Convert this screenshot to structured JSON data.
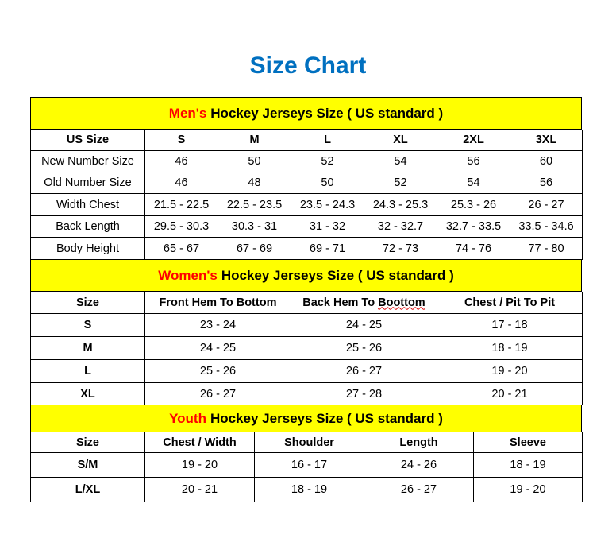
{
  "title": "Size Chart",
  "colors": {
    "title": "#0070C0",
    "header_bg": "#FFFF00",
    "highlight": "#FF0000"
  },
  "men": {
    "heading_highlight": "Men's",
    "heading_rest": "Hockey Jerseys Size ( US standard )",
    "columns": [
      "US Size",
      "S",
      "M",
      "L",
      "XL",
      "2XL",
      "3XL"
    ],
    "rows": [
      [
        "New Number Size",
        "46",
        "50",
        "52",
        "54",
        "56",
        "60"
      ],
      [
        "Old Number Size",
        "46",
        "48",
        "50",
        "52",
        "54",
        "56"
      ],
      [
        "Width Chest",
        "21.5 - 22.5",
        "22.5 - 23.5",
        "23.5 - 24.3",
        "24.3 - 25.3",
        "25.3 - 26",
        "26 - 27"
      ],
      [
        "Back Length",
        "29.5 - 30.3",
        "30.3 - 31",
        "31 - 32",
        "32 - 32.7",
        "32.7 - 33.5",
        "33.5 - 34.6"
      ],
      [
        "Body Height",
        "65 - 67",
        "67 - 69",
        "69 - 71",
        "72 - 73",
        "74 - 76",
        "77 - 80"
      ]
    ]
  },
  "women": {
    "heading_highlight": "Women's",
    "heading_rest": "Hockey Jerseys Size ( US standard )",
    "columns": [
      "Size",
      "Front Hem To Bottom",
      "Back Hem To Boottom",
      "Chest / Pit To Pit"
    ],
    "rows": [
      [
        "S",
        "23 - 24",
        "24 - 25",
        "17 - 18"
      ],
      [
        "M",
        "24 - 25",
        "25 - 26",
        "18 - 19"
      ],
      [
        "L",
        "25 - 26",
        "26 - 27",
        "19 - 20"
      ],
      [
        "XL",
        "26 - 27",
        "27 - 28",
        "20 - 21"
      ]
    ]
  },
  "youth": {
    "heading_highlight": "Youth",
    "heading_rest": "Hockey Jerseys Size ( US standard )",
    "columns": [
      "Size",
      "Chest / Width",
      "Shoulder",
      "Length",
      "Sleeve"
    ],
    "rows": [
      [
        "S/M",
        "19 - 20",
        "16 - 17",
        "24 - 26",
        "18 - 19"
      ],
      [
        "L/XL",
        "20 - 21",
        "18 - 19",
        "26 - 27",
        "19 - 20"
      ]
    ]
  }
}
